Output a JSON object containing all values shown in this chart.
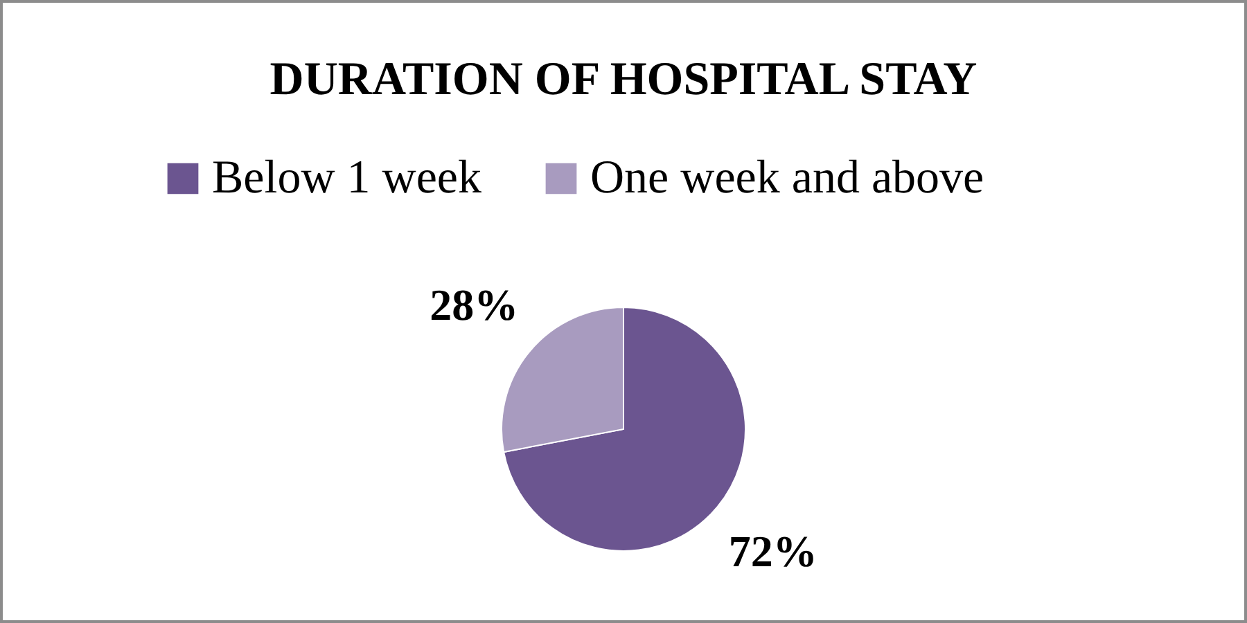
{
  "chart_data": {
    "type": "pie",
    "title": "DURATION OF HOSPITAL STAY",
    "categories": [
      "Below 1 week",
      "One week and above"
    ],
    "values": [
      72,
      28
    ],
    "colors": [
      "#6b5590",
      "#a89bbf"
    ],
    "value_labels": [
      "72%",
      "28%"
    ],
    "legend": "top"
  }
}
